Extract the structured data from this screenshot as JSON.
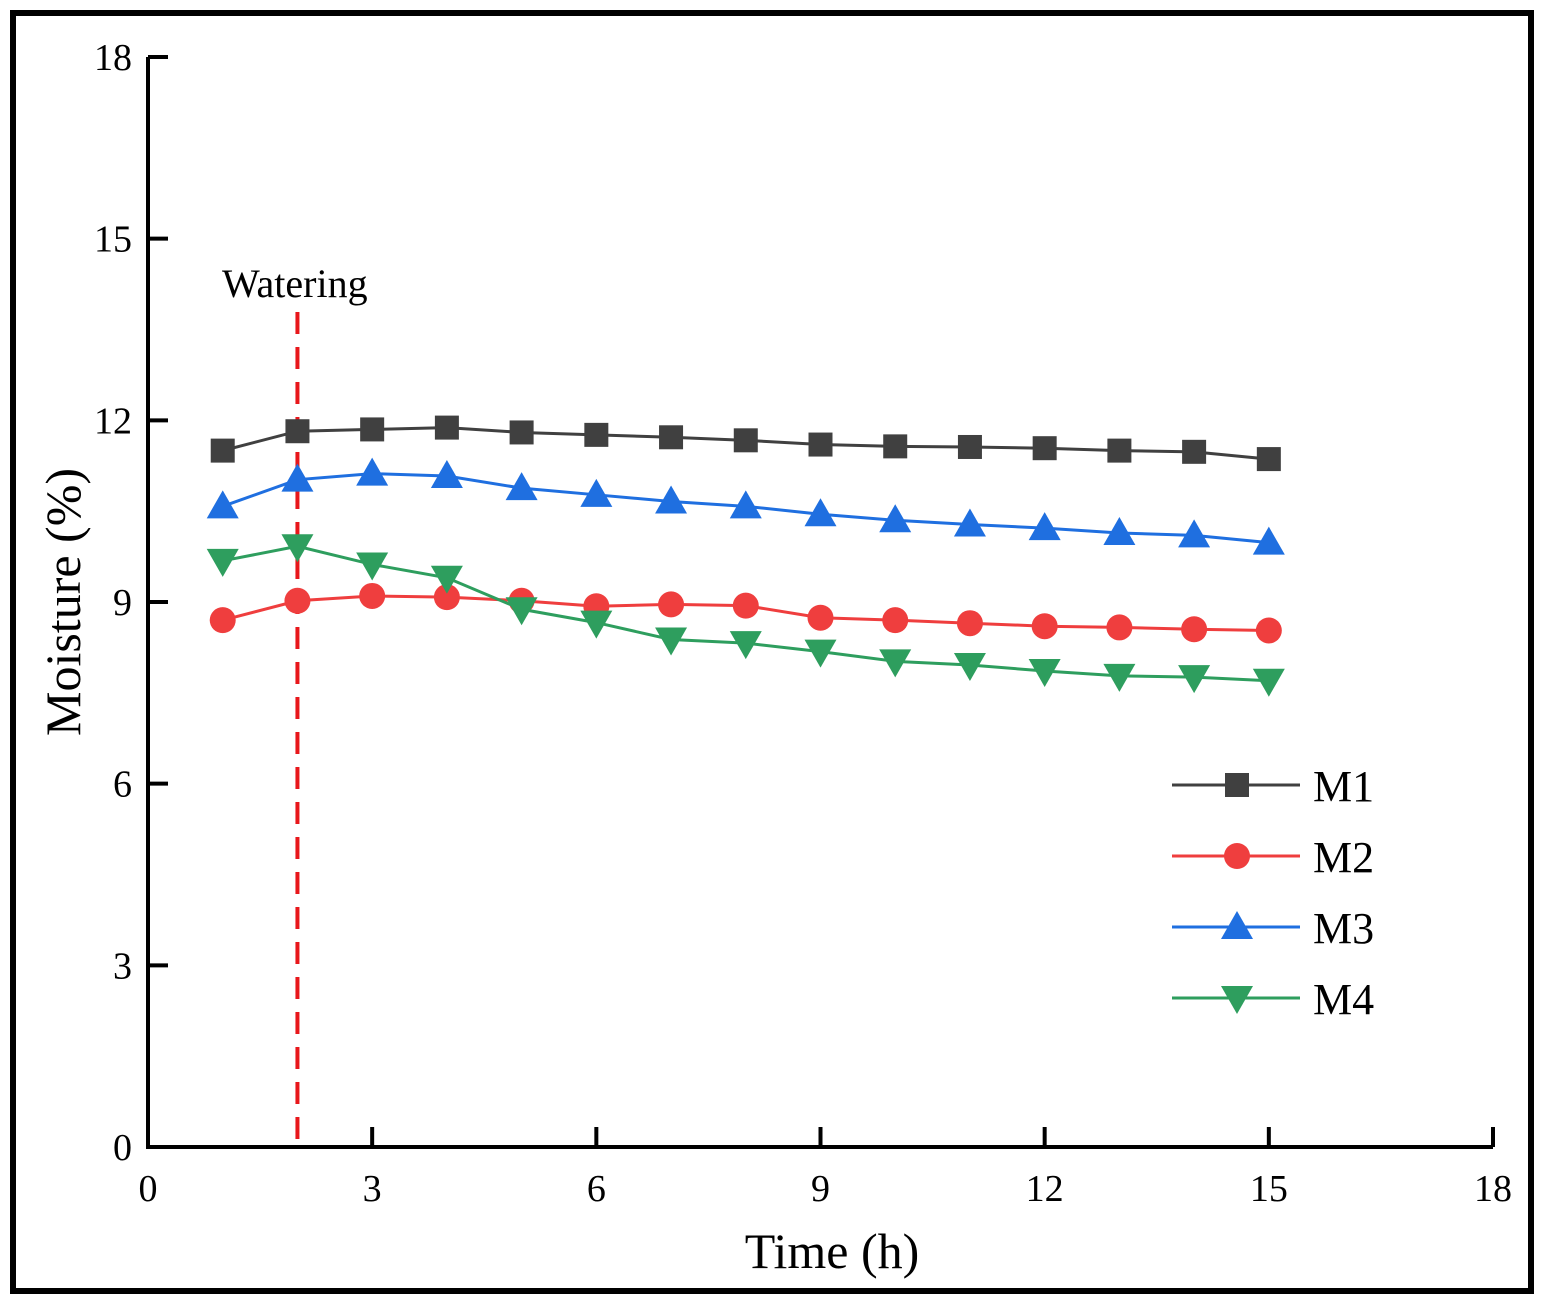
{
  "chart_data": {
    "type": "line",
    "title": "",
    "xlabel": "Time (h)",
    "ylabel": "Moisture (%)",
    "xlim": [
      0,
      18
    ],
    "ylim": [
      0,
      18
    ],
    "xticks": [
      0,
      3,
      6,
      9,
      12,
      15,
      18
    ],
    "yticks": [
      0,
      3,
      6,
      9,
      12,
      15,
      18
    ],
    "xtick_labels": [
      "0",
      "3",
      "6",
      "9",
      "12",
      "15",
      "18"
    ],
    "ytick_labels": [
      "0",
      "3",
      "6",
      "9",
      "12",
      "15",
      "18"
    ],
    "grid": false,
    "legend_position": "right",
    "x": [
      1,
      2,
      3,
      4,
      5,
      6,
      7,
      8,
      9,
      10,
      11,
      12,
      13,
      14,
      15
    ],
    "series": [
      {
        "name": "M1",
        "color": "#404040",
        "marker": "square",
        "values": [
          11.5,
          11.82,
          11.85,
          11.88,
          11.8,
          11.76,
          11.72,
          11.67,
          11.6,
          11.57,
          11.56,
          11.54,
          11.5,
          11.48,
          11.36
        ]
      },
      {
        "name": "M2",
        "color": "#ef3e3e",
        "marker": "circle",
        "values": [
          8.7,
          9.02,
          9.1,
          9.08,
          9.02,
          8.93,
          8.96,
          8.94,
          8.74,
          8.7,
          8.65,
          8.6,
          8.58,
          8.55,
          8.53
        ]
      },
      {
        "name": "M3",
        "color": "#1f6fe0",
        "marker": "triangle-up",
        "values": [
          10.58,
          11.02,
          11.12,
          11.08,
          10.88,
          10.77,
          10.66,
          10.58,
          10.45,
          10.35,
          10.28,
          10.22,
          10.14,
          10.1,
          9.98
        ]
      },
      {
        "name": "M4",
        "color": "#2e9e5e",
        "marker": "triangle-down",
        "values": [
          9.68,
          9.92,
          9.62,
          9.4,
          8.88,
          8.66,
          8.38,
          8.32,
          8.18,
          8.02,
          7.96,
          7.86,
          7.78,
          7.76,
          7.7
        ]
      }
    ],
    "annotations": [
      {
        "text": "Watering",
        "x": 2,
        "style": "dashed vertical line",
        "color": "#e8171b"
      }
    ]
  }
}
